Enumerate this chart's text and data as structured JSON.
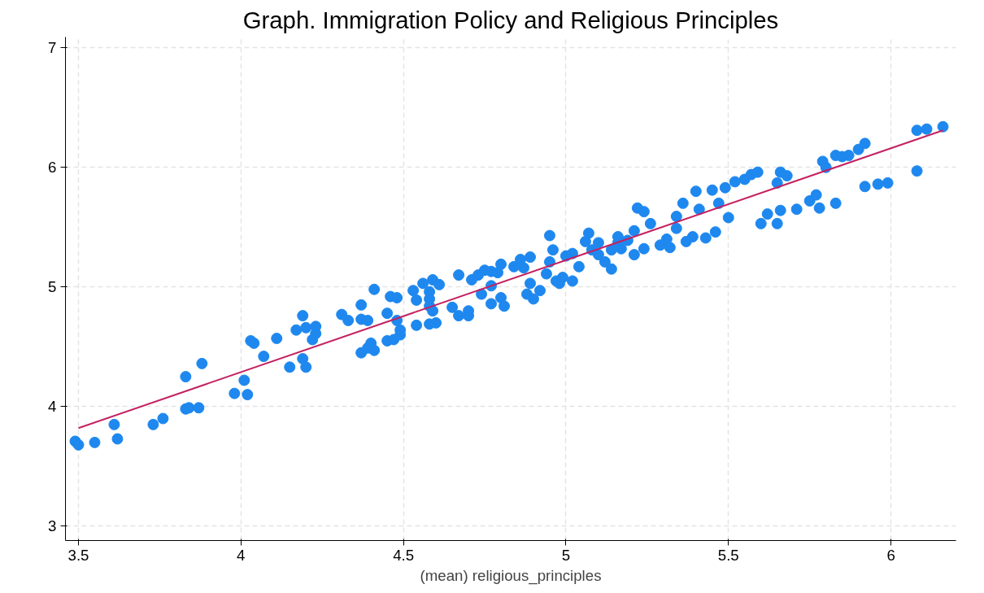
{
  "chart_data": {
    "type": "scatter",
    "title": "Graph. Immigration Policy and Religious Principles",
    "xlabel": "(mean) religious_principles",
    "xlim": [
      3.46,
      6.2
    ],
    "ylim": [
      2.88,
      7.09
    ],
    "xticks": [
      3.5,
      4,
      4.5,
      5,
      5.5,
      6
    ],
    "yticks": [
      3,
      4,
      5,
      6,
      7
    ],
    "grid": true,
    "series": [
      {
        "marker": "circle",
        "color": "#1e88ef",
        "x": [
          3.49,
          3.5,
          3.55,
          3.61,
          3.62,
          3.73,
          3.76,
          3.83,
          3.84,
          3.87,
          3.83,
          3.88,
          3.98,
          4.01,
          4.02,
          4.03,
          4.04,
          4.07,
          4.11,
          4.15,
          4.17,
          4.19,
          4.2,
          4.19,
          4.2,
          4.22,
          4.23,
          4.23,
          4.31,
          4.33,
          4.37,
          4.37,
          4.39,
          4.41,
          4.37,
          4.39,
          4.4,
          4.41,
          4.45,
          4.46,
          4.48,
          4.48,
          4.45,
          4.47,
          4.49,
          4.49,
          4.53,
          4.54,
          4.56,
          4.58,
          4.59,
          4.61,
          4.54,
          4.58,
          4.6,
          4.58,
          4.59,
          4.58,
          4.65,
          4.67,
          4.67,
          4.7,
          4.7,
          4.71,
          4.73,
          4.74,
          4.75,
          4.77,
          4.77,
          4.79,
          4.8,
          4.77,
          4.8,
          4.81,
          4.84,
          4.86,
          4.87,
          4.89,
          4.88,
          4.89,
          4.9,
          4.92,
          4.94,
          4.95,
          4.95,
          4.96,
          4.97,
          4.98,
          4.99,
          5.0,
          5.02,
          5.02,
          5.04,
          5.06,
          5.07,
          5.08,
          5.1,
          5.1,
          5.12,
          5.14,
          5.14,
          5.16,
          5.16,
          5.17,
          5.19,
          5.21,
          5.21,
          5.22,
          5.24,
          5.24,
          5.26,
          5.29,
          5.31,
          5.32,
          5.34,
          5.34,
          5.36,
          5.37,
          5.39,
          5.4,
          5.41,
          5.43,
          5.45,
          5.46,
          5.47,
          5.49,
          5.5,
          5.52,
          5.55,
          5.57,
          5.59,
          5.6,
          5.62,
          5.65,
          5.66,
          5.65,
          5.66,
          5.68,
          5.71,
          5.75,
          5.77,
          5.78,
          5.79,
          5.8,
          5.83,
          5.83,
          5.85,
          5.87,
          5.9,
          5.92,
          5.92,
          5.96,
          5.99,
          6.08,
          6.11,
          6.16,
          6.08
        ],
        "values": [
          3.71,
          3.68,
          3.7,
          3.85,
          3.73,
          3.85,
          3.9,
          3.98,
          3.99,
          3.99,
          4.25,
          4.36,
          4.11,
          4.22,
          4.1,
          4.55,
          4.53,
          4.42,
          4.57,
          4.33,
          4.64,
          4.4,
          4.33,
          4.76,
          4.66,
          4.56,
          4.67,
          4.61,
          4.77,
          4.72,
          4.85,
          4.73,
          4.72,
          4.98,
          4.45,
          4.49,
          4.53,
          4.47,
          4.78,
          4.92,
          4.91,
          4.72,
          4.55,
          4.56,
          4.6,
          4.64,
          4.97,
          4.89,
          5.03,
          4.96,
          5.06,
          5.02,
          4.68,
          4.69,
          4.7,
          4.84,
          4.8,
          4.9,
          4.83,
          4.76,
          5.1,
          4.8,
          4.76,
          5.06,
          5.1,
          4.94,
          5.14,
          5.13,
          5.01,
          5.12,
          5.19,
          4.86,
          4.91,
          4.84,
          5.17,
          5.23,
          5.16,
          5.25,
          4.94,
          5.03,
          4.9,
          4.97,
          5.11,
          5.21,
          5.43,
          5.31,
          5.05,
          5.03,
          5.08,
          5.26,
          5.28,
          5.05,
          5.17,
          5.38,
          5.45,
          5.31,
          5.27,
          5.37,
          5.21,
          5.31,
          5.15,
          5.37,
          5.42,
          5.32,
          5.39,
          5.47,
          5.27,
          5.66,
          5.32,
          5.63,
          5.53,
          5.35,
          5.4,
          5.33,
          5.59,
          5.49,
          5.7,
          5.38,
          5.42,
          5.8,
          5.65,
          5.41,
          5.81,
          5.46,
          5.7,
          5.83,
          5.58,
          5.88,
          5.9,
          5.94,
          5.96,
          5.53,
          5.61,
          5.53,
          5.64,
          5.87,
          5.96,
          5.93,
          5.65,
          5.72,
          5.77,
          5.66,
          6.05,
          6.0,
          5.7,
          6.1,
          6.09,
          6.1,
          6.15,
          6.2,
          5.84,
          5.86,
          5.87,
          6.31,
          6.32,
          6.34,
          5.97
        ]
      },
      {
        "type": "line",
        "marker": "none",
        "color": "#c42160",
        "x": [
          3.5,
          6.16
        ],
        "values": [
          3.82,
          6.31
        ]
      }
    ]
  }
}
